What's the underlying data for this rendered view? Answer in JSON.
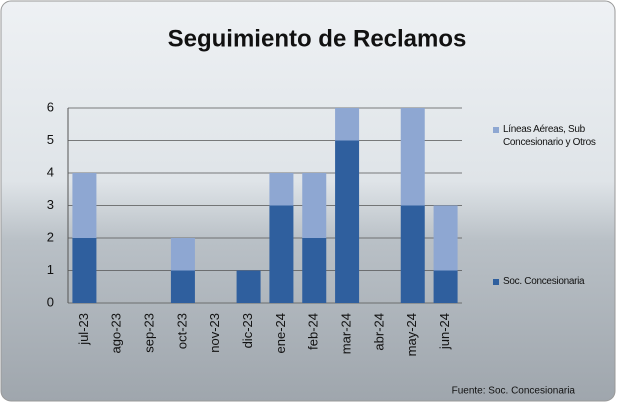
{
  "chart_data": {
    "type": "stacked_bar",
    "title": "Seguimiento de Reclamos",
    "categories": [
      "jul-23",
      "ago-23",
      "sep-23",
      "oct-23",
      "nov-23",
      "dic-23",
      "ene-24",
      "feb-24",
      "mar-24",
      "abr-24",
      "may-24",
      "jun-24"
    ],
    "series": [
      {
        "name": "Soc. Concesionaria",
        "color": "#2f5f9e",
        "values": [
          2,
          0,
          0,
          1,
          0,
          1,
          3,
          2,
          5,
          0,
          3,
          1
        ]
      },
      {
        "name": "Líneas Aéreas, Sub Concesionario y Otros",
        "color": "#8ea7d2",
        "values": [
          2,
          0,
          0,
          1,
          0,
          0,
          1,
          2,
          1,
          0,
          3,
          2
        ]
      }
    ],
    "ylim": [
      0,
      6
    ],
    "yticks": [
      0,
      1,
      2,
      3,
      4,
      5,
      6
    ],
    "grid": true,
    "legend": "right",
    "source": "Fuente: Soc. Concesionaria"
  }
}
